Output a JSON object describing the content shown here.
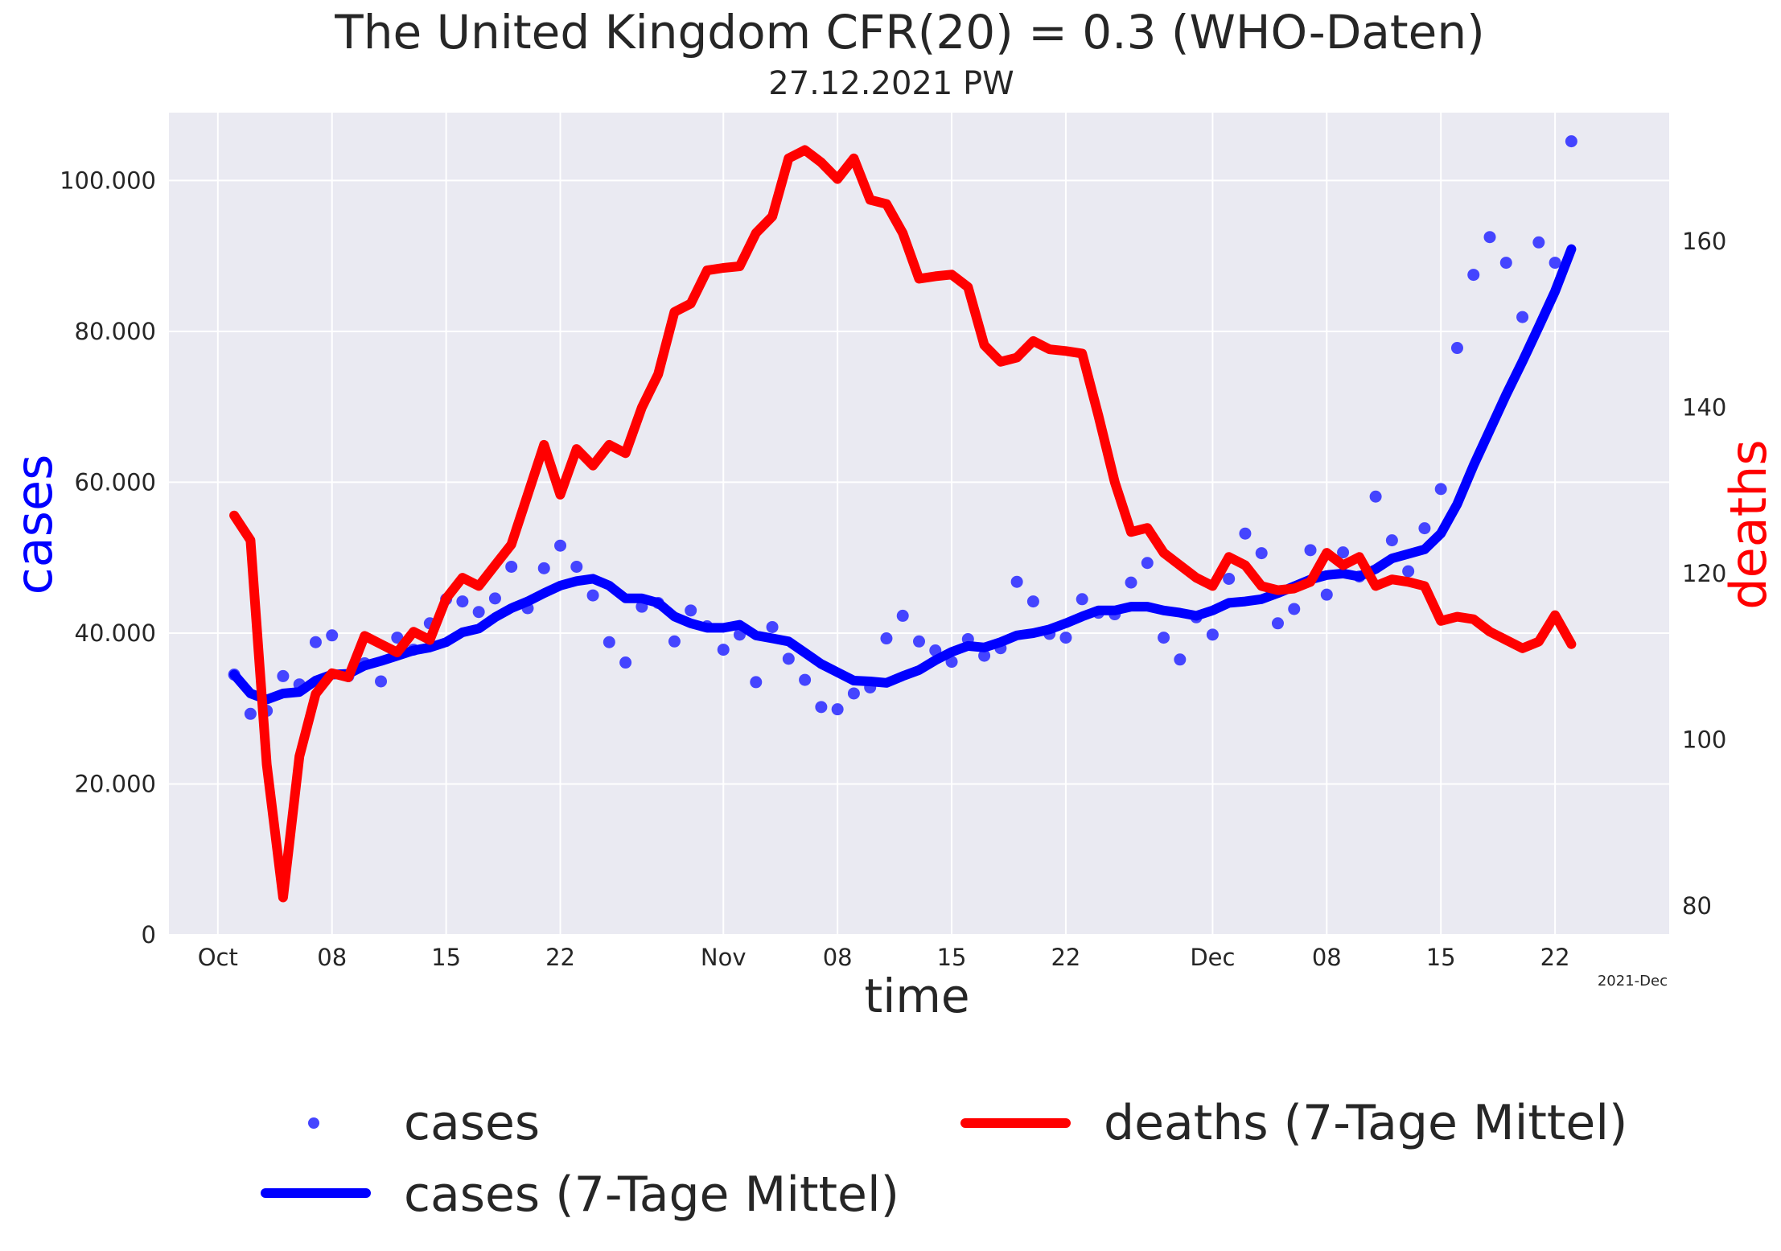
{
  "chart_data": {
    "type": "line",
    "title": "The United Kingdom CFR(20) = 0.3  (WHO-Daten)",
    "subtitle": "27.12.2021 PW",
    "xlabel": "time",
    "ylabel_left": "cases",
    "ylabel_right": "deaths",
    "x_offset_label": "2021-Dec",
    "x_ticks": [
      {
        "date": "2021-10-01",
        "label": "Oct"
      },
      {
        "date": "2021-10-08",
        "label": "08"
      },
      {
        "date": "2021-10-15",
        "label": "15"
      },
      {
        "date": "2021-10-22",
        "label": "22"
      },
      {
        "date": "2021-11-01",
        "label": "Nov"
      },
      {
        "date": "2021-11-08",
        "label": "08"
      },
      {
        "date": "2021-11-15",
        "label": "15"
      },
      {
        "date": "2021-11-22",
        "label": "22"
      },
      {
        "date": "2021-12-01",
        "label": "Dec"
      },
      {
        "date": "2021-12-08",
        "label": "08"
      },
      {
        "date": "2021-12-15",
        "label": "15"
      },
      {
        "date": "2021-12-22",
        "label": "22"
      }
    ],
    "xlim": [
      "2021-09-28",
      "2021-12-29"
    ],
    "y_left": {
      "lim": [
        0,
        109000
      ],
      "ticks": [
        0,
        20000,
        40000,
        60000,
        80000,
        100000
      ],
      "tick_labels": [
        "0",
        "20.000",
        "40.000",
        "60.000",
        "80.000",
        "100.000"
      ]
    },
    "y_right": {
      "lim": [
        76.5,
        175.5
      ],
      "ticks": [
        80,
        100,
        120,
        140,
        160
      ],
      "tick_labels": [
        "80",
        "100",
        "120",
        "140",
        "160"
      ]
    },
    "grid": true,
    "background": "#eaeaf2",
    "legend": {
      "placement": "below",
      "entries": [
        "cases",
        "cases (7-Tage Mittel)",
        "deaths (7-Tage Mittel)"
      ]
    },
    "colors": {
      "cases": "#4444ff",
      "cases_avg": "#0000ff",
      "deaths_avg": "#ff0000"
    },
    "series": [
      {
        "name": "cases",
        "style": "scatter",
        "axis": "left",
        "x": [
          "2021-10-02",
          "2021-10-03",
          "2021-10-04",
          "2021-10-05",
          "2021-10-06",
          "2021-10-07",
          "2021-10-08",
          "2021-10-09",
          "2021-10-10",
          "2021-10-11",
          "2021-10-12",
          "2021-10-13",
          "2021-10-14",
          "2021-10-15",
          "2021-10-16",
          "2021-10-17",
          "2021-10-18",
          "2021-10-19",
          "2021-10-20",
          "2021-10-21",
          "2021-10-22",
          "2021-10-23",
          "2021-10-24",
          "2021-10-25",
          "2021-10-26",
          "2021-10-27",
          "2021-10-28",
          "2021-10-29",
          "2021-10-30",
          "2021-10-31",
          "2021-11-01",
          "2021-11-02",
          "2021-11-03",
          "2021-11-04",
          "2021-11-05",
          "2021-11-06",
          "2021-11-07",
          "2021-11-08",
          "2021-11-09",
          "2021-11-10",
          "2021-11-11",
          "2021-11-12",
          "2021-11-13",
          "2021-11-14",
          "2021-11-15",
          "2021-11-16",
          "2021-11-17",
          "2021-11-18",
          "2021-11-19",
          "2021-11-20",
          "2021-11-21",
          "2021-11-22",
          "2021-11-23",
          "2021-11-24",
          "2021-11-25",
          "2021-11-26",
          "2021-11-27",
          "2021-11-28",
          "2021-11-29",
          "2021-11-30",
          "2021-12-01",
          "2021-12-02",
          "2021-12-03",
          "2021-12-04",
          "2021-12-05",
          "2021-12-06",
          "2021-12-07",
          "2021-12-08",
          "2021-12-09",
          "2021-12-10",
          "2021-12-11",
          "2021-12-12",
          "2021-12-13",
          "2021-12-14",
          "2021-12-15",
          "2021-12-16",
          "2021-12-17",
          "2021-12-18",
          "2021-12-19",
          "2021-12-20",
          "2021-12-21",
          "2021-12-22",
          "2021-12-23"
        ],
        "values": [
          34500,
          29300,
          29700,
          34300,
          33200,
          38800,
          39700,
          34300,
          36000,
          33600,
          39400,
          37800,
          41300,
          44500,
          44200,
          42800,
          44600,
          48800,
          43300,
          48600,
          51600,
          48800,
          45000,
          38800,
          36100,
          43500,
          44000,
          38900,
          43000,
          40900,
          37800,
          39800,
          33500,
          40800,
          36600,
          33800,
          30200,
          29900,
          32000,
          32800,
          39300,
          42300,
          38900,
          37700,
          36200,
          39200,
          37000,
          38000,
          46800,
          44200,
          39900,
          39400,
          44500,
          42700,
          42500,
          46700,
          49300,
          39400,
          36500,
          42100,
          39800,
          47200,
          53200,
          50600,
          41300,
          43200,
          51000,
          45100,
          50700,
          47500,
          58100,
          52300,
          48200,
          53900,
          59100,
          77800,
          87500,
          92500,
          89100,
          81900,
          91800,
          89100,
          105200
        ]
      },
      {
        "name": "cases (7-Tage Mittel)",
        "style": "line",
        "axis": "left",
        "x": [
          "2021-10-02",
          "2021-10-03",
          "2021-10-04",
          "2021-10-05",
          "2021-10-06",
          "2021-10-07",
          "2021-10-08",
          "2021-10-09",
          "2021-10-10",
          "2021-10-11",
          "2021-10-12",
          "2021-10-13",
          "2021-10-14",
          "2021-10-15",
          "2021-10-16",
          "2021-10-17",
          "2021-10-18",
          "2021-10-19",
          "2021-10-20",
          "2021-10-21",
          "2021-10-22",
          "2021-10-23",
          "2021-10-24",
          "2021-10-25",
          "2021-10-26",
          "2021-10-27",
          "2021-10-28",
          "2021-10-29",
          "2021-10-30",
          "2021-10-31",
          "2021-11-01",
          "2021-11-02",
          "2021-11-03",
          "2021-11-04",
          "2021-11-05",
          "2021-11-06",
          "2021-11-07",
          "2021-11-08",
          "2021-11-09",
          "2021-11-10",
          "2021-11-11",
          "2021-11-12",
          "2021-11-13",
          "2021-11-14",
          "2021-11-15",
          "2021-11-16",
          "2021-11-17",
          "2021-11-18",
          "2021-11-19",
          "2021-11-20",
          "2021-11-21",
          "2021-11-22",
          "2021-11-23",
          "2021-11-24",
          "2021-11-25",
          "2021-11-26",
          "2021-11-27",
          "2021-11-28",
          "2021-11-29",
          "2021-11-30",
          "2021-12-01",
          "2021-12-02",
          "2021-12-03",
          "2021-12-04",
          "2021-12-05",
          "2021-12-06",
          "2021-12-07",
          "2021-12-08",
          "2021-12-09",
          "2021-12-10",
          "2021-12-11",
          "2021-12-12",
          "2021-12-13",
          "2021-12-14",
          "2021-12-15",
          "2021-12-16",
          "2021-12-17",
          "2021-12-18",
          "2021-12-19",
          "2021-12-20",
          "2021-12-21",
          "2021-12-22",
          "2021-12-23"
        ],
        "values": [
          34500,
          32000,
          31200,
          32000,
          32200,
          33700,
          34500,
          34600,
          35700,
          36300,
          37000,
          37700,
          38100,
          38800,
          40100,
          40600,
          42100,
          43300,
          44200,
          45300,
          46300,
          46900,
          47200,
          46300,
          44600,
          44600,
          44000,
          42200,
          41300,
          40700,
          40700,
          41100,
          39700,
          39300,
          38900,
          37400,
          35900,
          34800,
          33700,
          33600,
          33400,
          34300,
          35100,
          36400,
          37500,
          38300,
          38100,
          38800,
          39700,
          40000,
          40500,
          41300,
          42200,
          43000,
          43000,
          43500,
          43500,
          43000,
          42700,
          42300,
          43000,
          44000,
          44200,
          44500,
          45300,
          46200,
          47100,
          47700,
          47900,
          47500,
          48500,
          49900,
          50500,
          51100,
          53200,
          57100,
          62200,
          66900,
          71600,
          76000,
          80600,
          85300,
          90900
        ]
      },
      {
        "name": "deaths (7-Tage Mittel)",
        "style": "line",
        "axis": "right",
        "x": [
          "2021-10-02",
          "2021-10-03",
          "2021-10-04",
          "2021-10-05",
          "2021-10-06",
          "2021-10-07",
          "2021-10-08",
          "2021-10-09",
          "2021-10-10",
          "2021-10-11",
          "2021-10-12",
          "2021-10-13",
          "2021-10-14",
          "2021-10-15",
          "2021-10-16",
          "2021-10-17",
          "2021-10-18",
          "2021-10-19",
          "2021-10-20",
          "2021-10-21",
          "2021-10-22",
          "2021-10-23",
          "2021-10-24",
          "2021-10-25",
          "2021-10-26",
          "2021-10-27",
          "2021-10-28",
          "2021-10-29",
          "2021-10-30",
          "2021-10-31",
          "2021-11-01",
          "2021-11-02",
          "2021-11-03",
          "2021-11-04",
          "2021-11-05",
          "2021-11-06",
          "2021-11-07",
          "2021-11-08",
          "2021-11-09",
          "2021-11-10",
          "2021-11-11",
          "2021-11-12",
          "2021-11-13",
          "2021-11-14",
          "2021-11-15",
          "2021-11-16",
          "2021-11-17",
          "2021-11-18",
          "2021-11-19",
          "2021-11-20",
          "2021-11-21",
          "2021-11-22",
          "2021-11-23",
          "2021-11-24",
          "2021-11-25",
          "2021-11-26",
          "2021-11-27",
          "2021-11-28",
          "2021-11-29",
          "2021-11-30",
          "2021-12-01",
          "2021-12-02",
          "2021-12-03",
          "2021-12-04",
          "2021-12-05",
          "2021-12-06",
          "2021-12-07",
          "2021-12-08",
          "2021-12-09",
          "2021-12-10",
          "2021-12-11",
          "2021-12-12",
          "2021-12-13",
          "2021-12-14",
          "2021-12-15",
          "2021-12-16",
          "2021-12-17",
          "2021-12-18",
          "2021-12-19",
          "2021-12-20",
          "2021-12-21",
          "2021-12-22",
          "2021-12-23"
        ],
        "values": [
          127,
          124,
          97,
          81,
          98,
          105.5,
          108,
          107.5,
          112.5,
          111.5,
          110.5,
          113,
          112,
          117,
          119.5,
          118.5,
          121,
          123.5,
          129.5,
          135.5,
          129.5,
          135,
          133,
          135.5,
          134.5,
          140,
          144,
          151.5,
          152.5,
          156.5,
          156.8,
          157,
          161,
          163,
          170,
          171,
          169.5,
          167.5,
          170,
          165,
          164.5,
          161,
          155.5,
          155.8,
          156,
          154.5,
          147.5,
          145.5,
          146,
          148,
          147,
          146.8,
          146.5,
          139,
          131,
          125,
          125.5,
          122.5,
          121,
          119.5,
          118.5,
          122,
          121,
          118.5,
          118,
          118.2,
          119,
          122.5,
          121,
          122,
          118.5,
          119.3,
          119,
          118.5,
          114.3,
          114.8,
          114.5,
          113,
          112,
          111,
          111.8,
          115,
          111.5
        ]
      }
    ]
  }
}
